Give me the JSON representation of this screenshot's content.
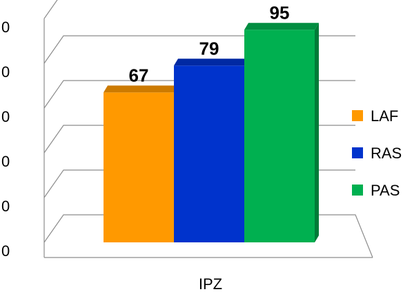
{
  "chart_data": {
    "type": "bar",
    "categories": [
      "IPZ"
    ],
    "series": [
      {
        "name": "LAF",
        "values": [
          67
        ],
        "color": "#ff9900"
      },
      {
        "name": "RAS",
        "values": [
          79
        ],
        "color": "#0033cc"
      },
      {
        "name": "PAS",
        "values": [
          95
        ],
        "color": "#00b050"
      }
    ],
    "y_tick_labels": [
      "0",
      "0",
      "0",
      "0",
      "0",
      "0"
    ],
    "ylim": [
      0,
      100
    ],
    "grid": true,
    "legend_position": "right",
    "style": "3d-column"
  }
}
